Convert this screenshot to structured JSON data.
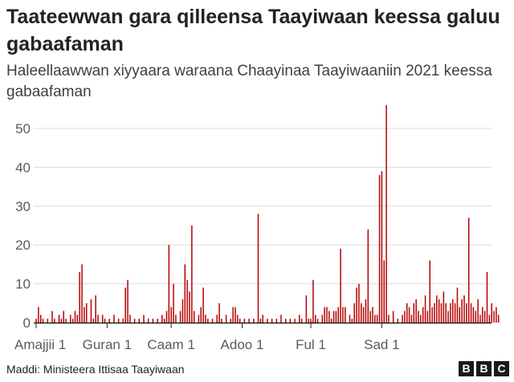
{
  "title": "Taateewwan gara qilleensa Taayiwaan keessa galuu gabaafaman",
  "subtitle": "Haleellaawwan xiyyaara waraana Chaayinaa Taayiwaaniin 2021 keessa gabaafaman",
  "source": "Maddi: Ministeera Ittisaa Taayiwaan",
  "logo_text": "BBC",
  "colors": {
    "bar": "#b80000",
    "grid": "#dcdcdc",
    "axis": "#222222",
    "text": "#5a5a5a"
  },
  "chart_data": {
    "type": "bar",
    "x_unit": "day of year 2021",
    "ylim": [
      0,
      55
    ],
    "yticks": [
      0,
      10,
      20,
      30,
      40,
      50
    ],
    "grid": true,
    "x_tick_labels": [
      {
        "day": 1,
        "label": "Amajjii 1"
      },
      {
        "day": 32,
        "label": "Guran 1"
      },
      {
        "day": 60,
        "label": "Caam 1"
      },
      {
        "day": 91,
        "label": "Adoo 1"
      },
      {
        "day": 121,
        "label": "Ful 1"
      },
      {
        "day": 152,
        "label": "Sad 1"
      }
    ],
    "points": [
      [
        1,
        1
      ],
      [
        2,
        4
      ],
      [
        3,
        2
      ],
      [
        4,
        1
      ],
      [
        6,
        1
      ],
      [
        8,
        3
      ],
      [
        9,
        1
      ],
      [
        11,
        2
      ],
      [
        12,
        1
      ],
      [
        13,
        3
      ],
      [
        14,
        1
      ],
      [
        16,
        2
      ],
      [
        17,
        1
      ],
      [
        18,
        3
      ],
      [
        19,
        2
      ],
      [
        20,
        13
      ],
      [
        21,
        15
      ],
      [
        22,
        4
      ],
      [
        23,
        5
      ],
      [
        25,
        6
      ],
      [
        26,
        1
      ],
      [
        27,
        7
      ],
      [
        28,
        2
      ],
      [
        30,
        2
      ],
      [
        31,
        1
      ],
      [
        33,
        1
      ],
      [
        35,
        2
      ],
      [
        37,
        1
      ],
      [
        39,
        1
      ],
      [
        40,
        9
      ],
      [
        41,
        11
      ],
      [
        42,
        2
      ],
      [
        44,
        1
      ],
      [
        46,
        1
      ],
      [
        48,
        2
      ],
      [
        50,
        1
      ],
      [
        52,
        1
      ],
      [
        54,
        1
      ],
      [
        56,
        2
      ],
      [
        57,
        1
      ],
      [
        58,
        3
      ],
      [
        59,
        20
      ],
      [
        60,
        4
      ],
      [
        61,
        10
      ],
      [
        62,
        2
      ],
      [
        64,
        3
      ],
      [
        65,
        6
      ],
      [
        66,
        15
      ],
      [
        67,
        11
      ],
      [
        68,
        8
      ],
      [
        69,
        25
      ],
      [
        70,
        3
      ],
      [
        72,
        2
      ],
      [
        73,
        4
      ],
      [
        74,
        9
      ],
      [
        75,
        2
      ],
      [
        76,
        1
      ],
      [
        78,
        1
      ],
      [
        80,
        2
      ],
      [
        81,
        5
      ],
      [
        82,
        1
      ],
      [
        84,
        2
      ],
      [
        86,
        1
      ],
      [
        87,
        4
      ],
      [
        88,
        4
      ],
      [
        89,
        2
      ],
      [
        90,
        1
      ],
      [
        92,
        1
      ],
      [
        94,
        1
      ],
      [
        96,
        1
      ],
      [
        98,
        28
      ],
      [
        99,
        1
      ],
      [
        100,
        2
      ],
      [
        102,
        1
      ],
      [
        104,
        1
      ],
      [
        106,
        1
      ],
      [
        108,
        2
      ],
      [
        110,
        1
      ],
      [
        112,
        1
      ],
      [
        114,
        1
      ],
      [
        116,
        2
      ],
      [
        117,
        1
      ],
      [
        119,
        7
      ],
      [
        120,
        1
      ],
      [
        121,
        1
      ],
      [
        122,
        11
      ],
      [
        123,
        2
      ],
      [
        124,
        1
      ],
      [
        126,
        2
      ],
      [
        127,
        4
      ],
      [
        128,
        4
      ],
      [
        129,
        3
      ],
      [
        130,
        1
      ],
      [
        131,
        3
      ],
      [
        132,
        3
      ],
      [
        133,
        4
      ],
      [
        134,
        19
      ],
      [
        135,
        4
      ],
      [
        136,
        4
      ],
      [
        138,
        2
      ],
      [
        139,
        1
      ],
      [
        140,
        5
      ],
      [
        141,
        9
      ],
      [
        142,
        10
      ],
      [
        143,
        5
      ],
      [
        144,
        4
      ],
      [
        145,
        6
      ],
      [
        146,
        24
      ],
      [
        147,
        3
      ],
      [
        148,
        4
      ],
      [
        149,
        2
      ],
      [
        150,
        2
      ],
      [
        151,
        38
      ],
      [
        152,
        39
      ],
      [
        153,
        16
      ],
      [
        154,
        56
      ],
      [
        155,
        2
      ],
      [
        157,
        3
      ],
      [
        159,
        1
      ],
      [
        161,
        2
      ],
      [
        162,
        3
      ],
      [
        163,
        5
      ],
      [
        164,
        4
      ],
      [
        165,
        2
      ],
      [
        166,
        5
      ],
      [
        167,
        6
      ],
      [
        168,
        3
      ],
      [
        169,
        2
      ],
      [
        170,
        4
      ],
      [
        171,
        7
      ],
      [
        172,
        3
      ],
      [
        173,
        16
      ],
      [
        174,
        4
      ],
      [
        175,
        5
      ],
      [
        176,
        7
      ],
      [
        177,
        6
      ],
      [
        178,
        5
      ],
      [
        179,
        8
      ],
      [
        180,
        5
      ],
      [
        181,
        3
      ],
      [
        182,
        5
      ],
      [
        183,
        6
      ],
      [
        184,
        5
      ],
      [
        185,
        9
      ],
      [
        186,
        4
      ],
      [
        187,
        6
      ],
      [
        188,
        7
      ],
      [
        189,
        5
      ],
      [
        190,
        27
      ],
      [
        191,
        5
      ],
      [
        192,
        4
      ],
      [
        193,
        3
      ],
      [
        194,
        6
      ],
      [
        195,
        2
      ],
      [
        196,
        4
      ],
      [
        197,
        3
      ],
      [
        198,
        13
      ],
      [
        199,
        2
      ],
      [
        200,
        5
      ],
      [
        201,
        3
      ],
      [
        202,
        4
      ],
      [
        203,
        2
      ]
    ]
  }
}
